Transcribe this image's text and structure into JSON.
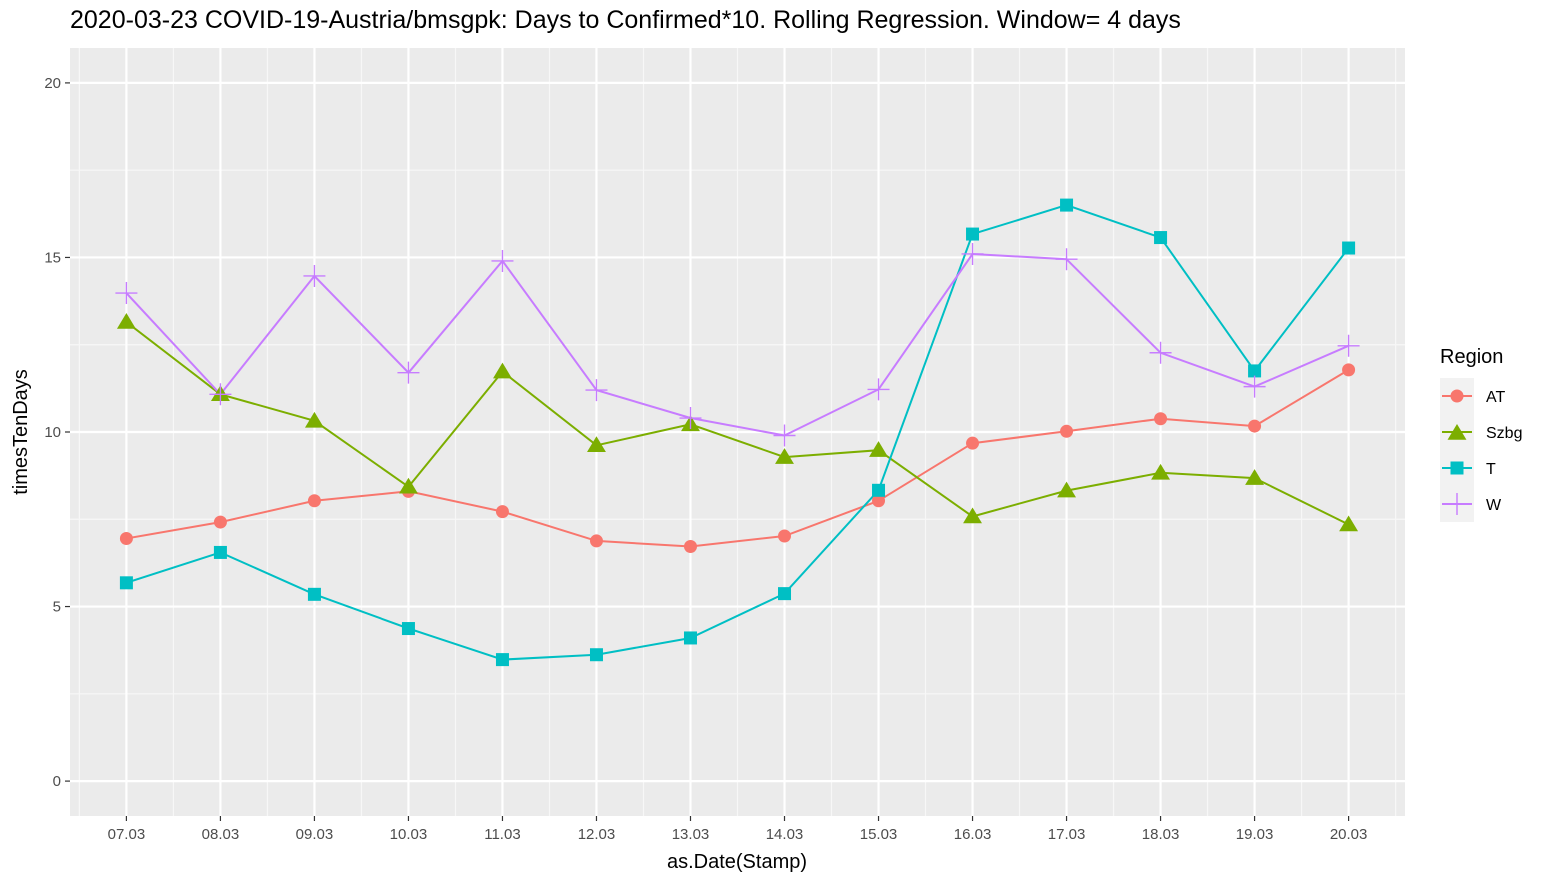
{
  "chart_data": {
    "type": "line",
    "title": "2020-03-23 COVID-19-Austria/bmsgpk: Days to Confirmed*10. Rolling Regression. Window= 4  days",
    "xlabel": "as.Date(Stamp)",
    "ylabel": "timesTenDays",
    "categories": [
      "07.03",
      "08.03",
      "09.03",
      "10.03",
      "11.03",
      "12.03",
      "13.03",
      "14.03",
      "15.03",
      "16.03",
      "17.03",
      "18.03",
      "19.03",
      "20.03"
    ],
    "ylim": [
      -1,
      21
    ],
    "yticks": [
      0,
      5,
      10,
      15,
      20
    ],
    "grid": true,
    "legend": {
      "title": "Region",
      "position": "right"
    },
    "series": [
      {
        "name": "AT",
        "color": "#F8766D",
        "marker": "circle",
        "values": [
          6.95,
          7.42,
          8.03,
          8.3,
          7.72,
          6.88,
          6.72,
          7.02,
          8.03,
          9.68,
          10.02,
          10.38,
          10.17,
          11.78
        ]
      },
      {
        "name": "Szbg",
        "color": "#7CAE00",
        "marker": "triangle",
        "values": [
          13.15,
          11.08,
          10.32,
          8.43,
          11.73,
          9.62,
          10.22,
          9.28,
          9.48,
          7.58,
          8.32,
          8.83,
          8.68,
          7.35
        ]
      },
      {
        "name": "T",
        "color": "#00BFC4",
        "marker": "square",
        "values": [
          5.68,
          6.55,
          5.35,
          4.37,
          3.48,
          3.62,
          4.1,
          5.37,
          8.33,
          15.67,
          16.5,
          15.57,
          11.75,
          15.27
        ]
      },
      {
        "name": "W",
        "color": "#C77CFF",
        "marker": "plus",
        "values": [
          13.98,
          11.08,
          14.47,
          11.7,
          14.9,
          11.2,
          10.4,
          9.9,
          11.22,
          15.1,
          14.95,
          12.27,
          11.3,
          12.47
        ]
      }
    ]
  }
}
